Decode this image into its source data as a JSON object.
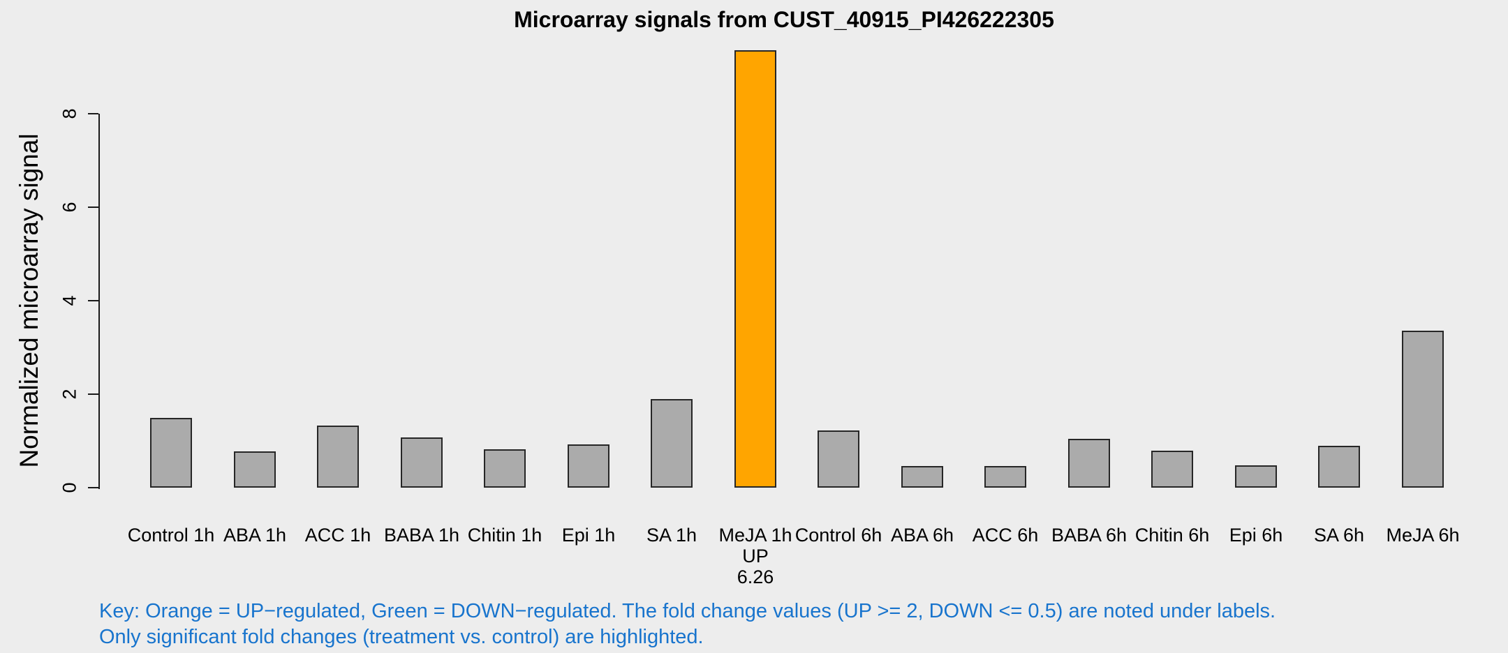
{
  "page": {
    "background": "#EDEDED"
  },
  "chart_data": {
    "type": "bar",
    "title": "Microarray signals from CUST_40915_PI426222305",
    "xlabel": "",
    "ylabel": "Normalized microarray signal",
    "ylim": [
      0,
      9.4
    ],
    "yticks": [
      0,
      2,
      4,
      6,
      8
    ],
    "grid": false,
    "legend_position": "none",
    "categories": [
      "Control 1h",
      "ABA 1h",
      "ACC 1h",
      "BABA 1h",
      "Chitin 1h",
      "Epi 1h",
      "SA 1h",
      "MeJA 1h",
      "Control 6h",
      "ABA 6h",
      "ACC 6h",
      "BABA 6h",
      "Chitin 6h",
      "Epi 6h",
      "SA 6h",
      "MeJA 6h"
    ],
    "values": [
      1.49,
      0.78,
      1.33,
      1.07,
      0.82,
      0.92,
      1.89,
      9.36,
      1.23,
      0.46,
      0.46,
      1.04,
      0.79,
      0.48,
      0.89,
      3.36
    ],
    "bars": [
      {
        "label": "Control 1h",
        "value": 1.49,
        "state": "normal",
        "annotation": []
      },
      {
        "label": "ABA 1h",
        "value": 0.78,
        "state": "normal",
        "annotation": []
      },
      {
        "label": "ACC 1h",
        "value": 1.33,
        "state": "normal",
        "annotation": []
      },
      {
        "label": "BABA 1h",
        "value": 1.07,
        "state": "normal",
        "annotation": []
      },
      {
        "label": "Chitin 1h",
        "value": 0.82,
        "state": "normal",
        "annotation": []
      },
      {
        "label": "Epi 1h",
        "value": 0.92,
        "state": "normal",
        "annotation": []
      },
      {
        "label": "SA 1h",
        "value": 1.89,
        "state": "normal",
        "annotation": []
      },
      {
        "label": "MeJA 1h",
        "value": 9.36,
        "state": "up",
        "annotation": [
          "UP",
          "6.26"
        ]
      },
      {
        "label": "Control 6h",
        "value": 1.23,
        "state": "normal",
        "annotation": []
      },
      {
        "label": "ABA 6h",
        "value": 0.46,
        "state": "normal",
        "annotation": []
      },
      {
        "label": "ACC 6h",
        "value": 0.46,
        "state": "normal",
        "annotation": []
      },
      {
        "label": "BABA 6h",
        "value": 1.04,
        "state": "normal",
        "annotation": []
      },
      {
        "label": "Chitin 6h",
        "value": 0.79,
        "state": "normal",
        "annotation": []
      },
      {
        "label": "Epi 6h",
        "value": 0.48,
        "state": "normal",
        "annotation": []
      },
      {
        "label": "SA 6h",
        "value": 0.89,
        "state": "normal",
        "annotation": []
      },
      {
        "label": "MeJA 6h",
        "value": 3.36,
        "state": "normal",
        "annotation": []
      }
    ],
    "colors": {
      "normal": "#ABABAB",
      "up": "#FFA500",
      "down": "#2E8B57",
      "border": "#262626",
      "axis": "#1A1A1A"
    }
  },
  "footer": {
    "line1": "Key: Orange = UP−regulated, Green = DOWN−regulated. The fold change values (UP >= 2, DOWN <= 0.5) are noted under labels.",
    "line2": "Only significant fold changes (treatment vs. control) are highlighted.",
    "color": "#1874CD"
  }
}
